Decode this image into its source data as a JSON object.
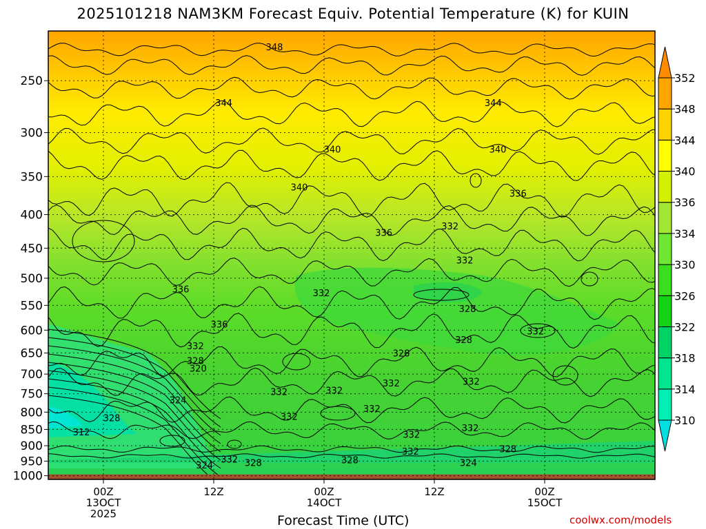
{
  "title": "2025101218 NAM3KM Forecast Equiv. Potential Temperature (K) for KUIN",
  "credit": "coolwx.com/models",
  "chart_data": {
    "type": "heatmap",
    "title": "2025101218 NAM3KM Forecast Equiv. Potential Temperature (K) for KUIN",
    "xlabel": "Forecast Time (UTC)",
    "ylabel": "",
    "x_range": [
      "2025-10-12 18Z",
      "2025-10-15 12Z"
    ],
    "x_ticks": [
      {
        "hour": 6,
        "lines": [
          "00Z",
          "13OCT",
          "2025"
        ]
      },
      {
        "hour": 18,
        "lines": [
          "12Z"
        ]
      },
      {
        "hour": 30,
        "lines": [
          "00Z",
          "14OCT"
        ]
      },
      {
        "hour": 42,
        "lines": [
          "12Z"
        ]
      },
      {
        "hour": 54,
        "lines": [
          "00Z",
          "15OCT"
        ]
      }
    ],
    "y_scale": "log",
    "y_range_hPa": [
      1013,
      210
    ],
    "y_ticks": [
      250,
      300,
      350,
      400,
      450,
      500,
      550,
      600,
      650,
      700,
      750,
      800,
      850,
      900,
      950,
      1000
    ],
    "grid": true,
    "colorbar": {
      "levels": [
        310,
        314,
        318,
        322,
        326,
        330,
        334,
        336,
        340,
        344,
        348,
        352
      ],
      "colors": [
        "#00e0e0",
        "#00f0b4",
        "#00e68c",
        "#00d264",
        "#14d214",
        "#3cdc1e",
        "#6ee632",
        "#a0e632",
        "#d2f000",
        "#ffff00",
        "#ffd200",
        "#ffa500",
        "#ff8c00"
      ]
    },
    "ground_color": "#a0522d",
    "contour_labels": [
      {
        "value": 348,
        "hour": 24.6,
        "p": 222
      },
      {
        "value": 344,
        "hour": 19.1,
        "p": 270
      },
      {
        "value": 344,
        "hour": 48.4,
        "p": 270
      },
      {
        "value": 340,
        "hour": 30.9,
        "p": 318
      },
      {
        "value": 340,
        "hour": 48.9,
        "p": 318
      },
      {
        "value": 340,
        "hour": 27.3,
        "p": 363
      },
      {
        "value": 336,
        "hour": 51.1,
        "p": 371
      },
      {
        "value": 336,
        "hour": 36.5,
        "p": 426
      },
      {
        "value": 336,
        "hour": 14.4,
        "p": 519
      },
      {
        "value": 336,
        "hour": 18.6,
        "p": 587
      },
      {
        "value": 332,
        "hour": 43.7,
        "p": 416
      },
      {
        "value": 332,
        "hour": 45.3,
        "p": 469
      },
      {
        "value": 332,
        "hour": 29.7,
        "p": 526
      },
      {
        "value": 332,
        "hour": 16.0,
        "p": 634
      },
      {
        "value": 332,
        "hour": 53.0,
        "p": 602
      },
      {
        "value": 332,
        "hour": 25.1,
        "p": 744
      },
      {
        "value": 332,
        "hour": 31.1,
        "p": 741
      },
      {
        "value": 332,
        "hour": 37.3,
        "p": 722
      },
      {
        "value": 332,
        "hour": 46.0,
        "p": 718
      },
      {
        "value": 332,
        "hour": 35.2,
        "p": 790
      },
      {
        "value": 332,
        "hour": 26.2,
        "p": 812
      },
      {
        "value": 332,
        "hour": 39.5,
        "p": 865
      },
      {
        "value": 332,
        "hour": 45.9,
        "p": 845
      },
      {
        "value": 332,
        "hour": 39.4,
        "p": 917
      },
      {
        "value": 332,
        "hour": 19.7,
        "p": 943
      },
      {
        "value": 328,
        "hour": 45.6,
        "p": 556
      },
      {
        "value": 328,
        "hour": 45.2,
        "p": 620
      },
      {
        "value": 328,
        "hour": 38.4,
        "p": 650
      },
      {
        "value": 328,
        "hour": 16.0,
        "p": 668
      },
      {
        "value": 328,
        "hour": 6.9,
        "p": 816
      },
      {
        "value": 328,
        "hour": 50.0,
        "p": 910
      },
      {
        "value": 328,
        "hour": 22.3,
        "p": 955
      },
      {
        "value": 328,
        "hour": 32.8,
        "p": 945
      },
      {
        "value": 320,
        "hour": 16.3,
        "p": 686
      },
      {
        "value": 324,
        "hour": 14.1,
        "p": 766
      },
      {
        "value": 324,
        "hour": 17.0,
        "p": 963
      },
      {
        "value": 324,
        "hour": 45.7,
        "p": 955
      },
      {
        "value": 312,
        "hour": 3.6,
        "p": 857
      }
    ]
  }
}
